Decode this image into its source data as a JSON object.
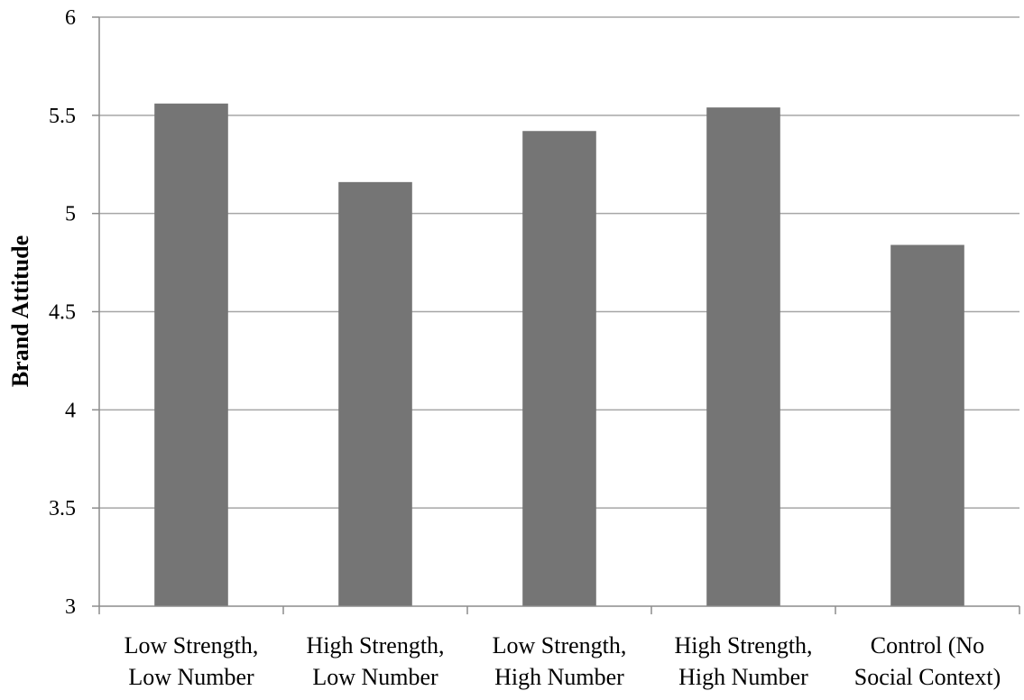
{
  "chart_data": {
    "type": "bar",
    "title": "",
    "xlabel": "",
    "ylabel": "Brand Attitude",
    "ylim": [
      3,
      6
    ],
    "yticks": [
      "3",
      "3.5",
      "4",
      "4.5",
      "5",
      "5.5",
      "6"
    ],
    "grid": true,
    "legend": "none",
    "categories": [
      [
        "Low Strength,",
        "Low Number"
      ],
      [
        "High Strength,",
        "Low Number"
      ],
      [
        "Low Strength,",
        "High Number"
      ],
      [
        "High Strength,",
        "High Number"
      ],
      [
        "Control (No",
        "Social Context)"
      ]
    ],
    "values": [
      5.56,
      5.16,
      5.42,
      5.54,
      4.84
    ],
    "colors": {
      "bar": "#757575",
      "grid": "#a6a6a6",
      "axis": "#8c8c8c"
    }
  }
}
